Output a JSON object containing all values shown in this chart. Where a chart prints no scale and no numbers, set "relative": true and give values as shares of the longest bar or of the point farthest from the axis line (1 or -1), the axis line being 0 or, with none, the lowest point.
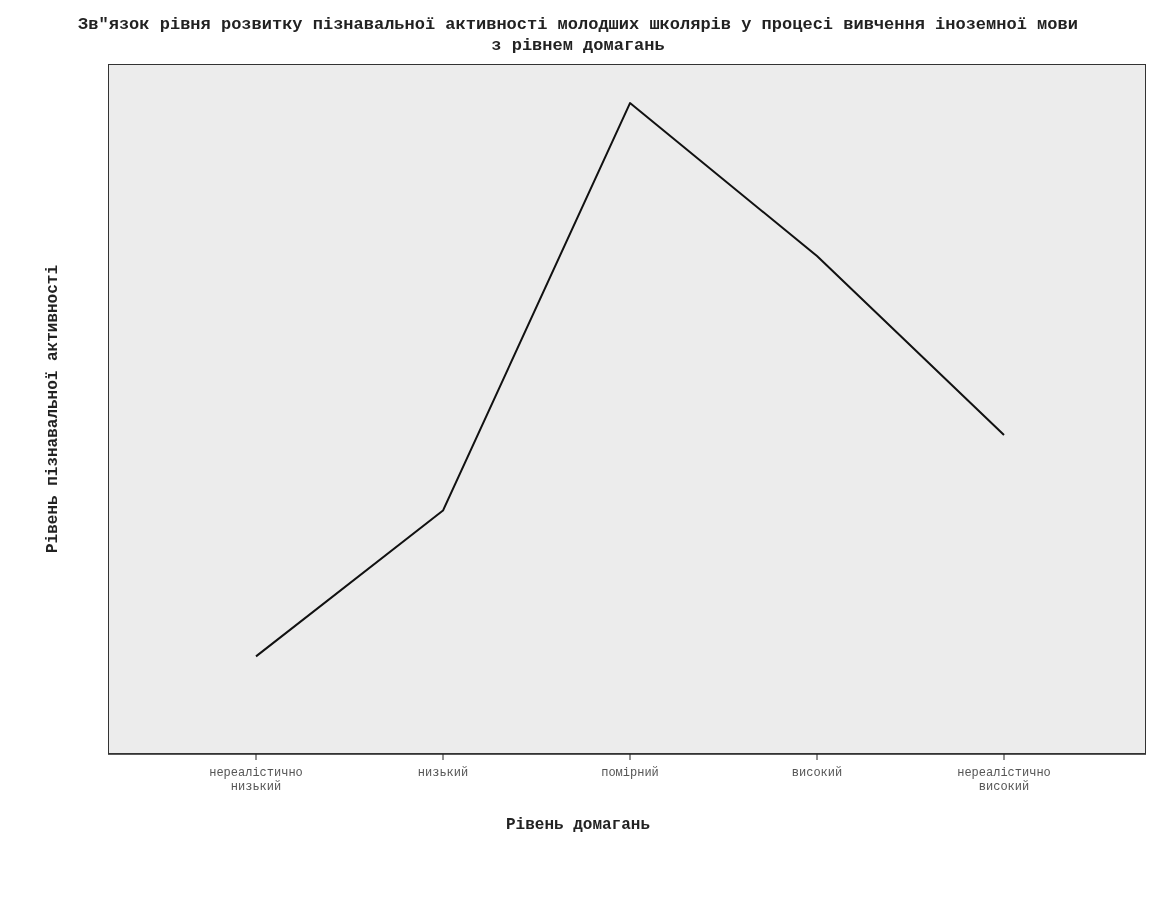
{
  "chart_data": {
    "type": "line",
    "title": "Зв\"язок рівня розвитку пізнавальної активності молодших школярів у процесі вивчення іноземної мови з  рівнем домагань",
    "xlabel": "Рівень домагань",
    "ylabel": "Рівень пізнавальної активності",
    "categories": [
      "нереалістично низький",
      "низький",
      "помірний",
      "високий",
      "нереалістично високий"
    ],
    "relative": true,
    "series": [
      {
        "color": "#111111",
        "values": [
          0.15,
          0.374,
          1,
          0.765,
          0.49
        ]
      }
    ],
    "marker": "none",
    "line_style": "solid",
    "grid": false,
    "legend": false
  }
}
